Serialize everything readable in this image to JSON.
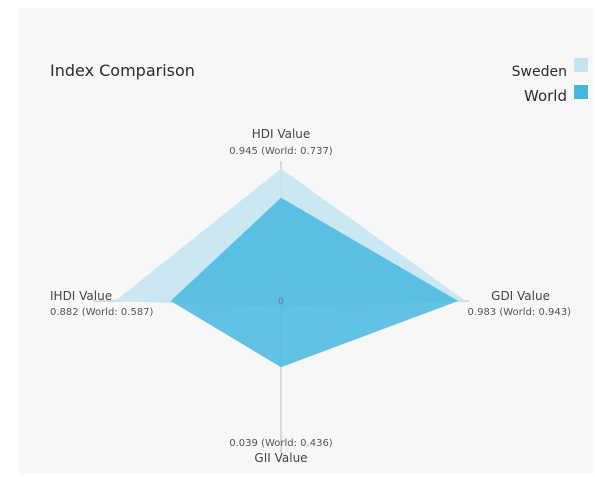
{
  "chart_data": {
    "type": "radar",
    "title": "Index Comparison",
    "center_label": "0",
    "axes": [
      {
        "key": "hdi",
        "name": "HDI Value",
        "direction": "up",
        "label": "0.945 (World: 0.737)"
      },
      {
        "key": "gdi",
        "name": "GDI Value",
        "direction": "right",
        "label": "0.983 (World: 0.943)"
      },
      {
        "key": "gii",
        "name": "GII Value",
        "direction": "down",
        "label": "0.039 (World: 0.436)"
      },
      {
        "key": "ihdi",
        "name": "IHDI Value",
        "direction": "left",
        "label": "0.882 (World: 0.587)"
      }
    ],
    "range": [
      0,
      1
    ],
    "series": [
      {
        "name": "Sweden",
        "values": [
          0.945,
          0.983,
          0.039,
          0.882
        ],
        "color": "#c5e4f0"
      },
      {
        "name": "World",
        "values": [
          0.737,
          0.943,
          0.436,
          0.587
        ],
        "color": "#46b8e0"
      }
    ],
    "legend_position": "top-right"
  }
}
